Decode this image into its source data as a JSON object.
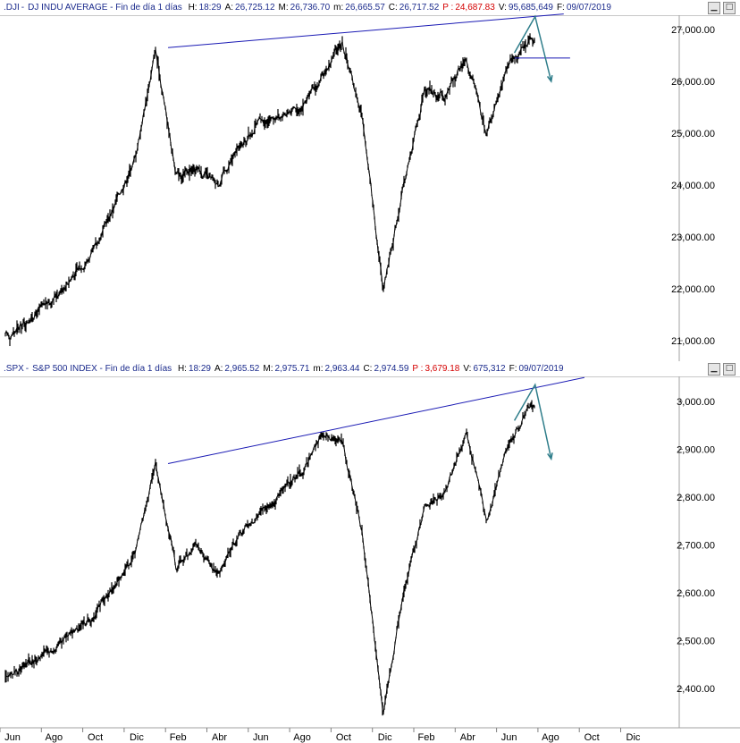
{
  "panels": [
    {
      "symbol": ".DJI",
      "title": "DJ INDU AVERAGE - Fin de día 1 días",
      "fields": [
        {
          "k": "H:",
          "v": "18:29"
        },
        {
          "k": "A:",
          "v": "26,725.12"
        },
        {
          "k": "M:",
          "v": "26,736.70"
        },
        {
          "k": "m:",
          "v": "26,665.57"
        },
        {
          "k": "C:",
          "v": "26,717.52"
        },
        {
          "k": "P :",
          "v": "24,687.83",
          "highlight": true
        },
        {
          "k": "V:",
          "v": "95,685,649"
        },
        {
          "k": "F:",
          "v": "09/07/2019"
        }
      ],
      "window_buttons": [
        "minimize-icon",
        "maximize-icon"
      ]
    },
    {
      "symbol": ".SPX",
      "title": "S&P 500 INDEX - Fin de día 1 días",
      "fields": [
        {
          "k": "H:",
          "v": "18:29"
        },
        {
          "k": "A:",
          "v": "2,965.52"
        },
        {
          "k": "M:",
          "v": "2,975.71"
        },
        {
          "k": "m:",
          "v": "2,963.44"
        },
        {
          "k": "C:",
          "v": "2,974.59"
        },
        {
          "k": "P :",
          "v": "3,679.18",
          "highlight": true
        },
        {
          "k": "V:",
          "v": "675,312"
        },
        {
          "k": "F:",
          "v": "09/07/2019"
        }
      ],
      "window_buttons": [
        "minimize-icon",
        "maximize-icon"
      ]
    }
  ],
  "x_axis_labels": [
    "Jun",
    "Ago",
    "Oct",
    "Dic",
    "Feb",
    "Abr",
    "Jun",
    "Ago",
    "Oct",
    "Dic",
    "Feb",
    "Abr",
    "Jun",
    "Ago",
    "Oct",
    "Dic"
  ],
  "colors": {
    "price": "#000000",
    "trendline": "#1a1ab4",
    "projection": "#2e7d8a",
    "axis_text": "#000000",
    "header_value": "#1a2a8c",
    "header_highlight": "#d40000"
  },
  "chart_data": [
    {
      "type": "line",
      "ylim": [
        20900,
        27450
      ],
      "y_ticks": [
        "27,000.00",
        "26,000.00",
        "25,000.00",
        "24,000.00",
        "23,000.00",
        "22,000.00",
        "21,000.00"
      ],
      "y_tick_values": [
        27000,
        26000,
        25000,
        24000,
        23000,
        22000,
        21000
      ],
      "x": [
        "2017-06",
        "2017-08",
        "2017-10",
        "2017-12",
        "2018-01",
        "2018-02",
        "2018-03",
        "2018-04",
        "2018-05",
        "2018-06",
        "2018-08",
        "2018-09",
        "2018-10",
        "2018-11",
        "2018-12",
        "2019-01",
        "2019-02",
        "2019-03",
        "2019-04",
        "2019-05",
        "2019-06",
        "2019-07"
      ],
      "values": [
        21100,
        21800,
        22700,
        24500,
        26600,
        24200,
        24300,
        24000,
        24700,
        25200,
        25500,
        26000,
        26800,
        25300,
        22000,
        24000,
        25800,
        25700,
        26500,
        25000,
        26300,
        26800
      ],
      "trendline": {
        "start": [
          "2018-01",
          26650
        ],
        "end": [
          "2019-07",
          27300
        ]
      },
      "support_line": {
        "start": [
          "2019-06",
          26450
        ],
        "end": [
          "2019-08",
          26450
        ]
      },
      "projection_arrow": [
        [
          "2019-06",
          26550
        ],
        [
          "2019-07",
          27250
        ],
        [
          "2019-07",
          26000
        ]
      ]
    },
    {
      "type": "line",
      "ylim": [
        2330,
        3040
      ],
      "y_ticks": [
        "3,000.00",
        "2,900.00",
        "2,800.00",
        "2,700.00",
        "2,600.00",
        "2,500.00",
        "2,400.00"
      ],
      "y_tick_values": [
        3000,
        2900,
        2800,
        2700,
        2600,
        2500,
        2400
      ],
      "x": [
        "2017-06",
        "2017-08",
        "2017-10",
        "2017-12",
        "2018-01",
        "2018-02",
        "2018-03",
        "2018-04",
        "2018-05",
        "2018-06",
        "2018-08",
        "2018-09",
        "2018-10",
        "2018-11",
        "2018-12",
        "2019-01",
        "2019-02",
        "2019-03",
        "2019-04",
        "2019-05",
        "2019-06",
        "2019-07"
      ],
      "values": [
        2430,
        2480,
        2550,
        2680,
        2870,
        2650,
        2700,
        2640,
        2720,
        2760,
        2850,
        2930,
        2920,
        2720,
        2350,
        2600,
        2780,
        2810,
        2940,
        2750,
        2900,
        2990
      ],
      "trendline": {
        "start": [
          "2018-01",
          2870
        ],
        "end": [
          "2019-08",
          3050
        ]
      },
      "projection_arrow": [
        [
          "2019-06",
          2960
        ],
        [
          "2019-07",
          3035
        ],
        [
          "2019-07",
          2880
        ]
      ]
    }
  ]
}
